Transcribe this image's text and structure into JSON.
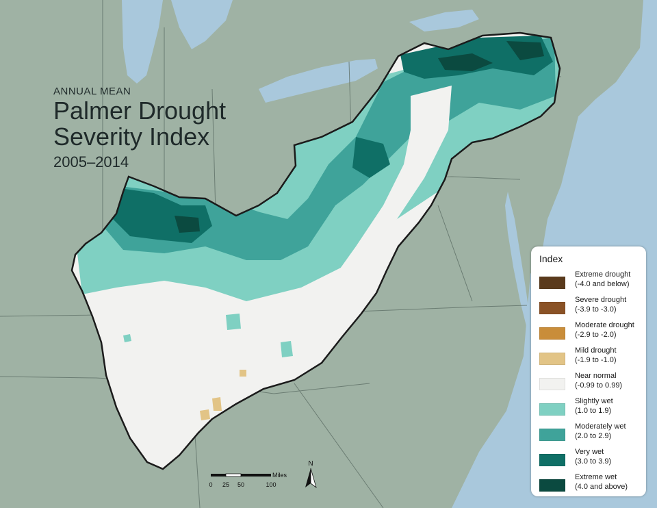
{
  "title": {
    "small": "ANNUAL MEAN",
    "line1": "Palmer Drought",
    "line2": "Severity Index",
    "years": "2005–2014"
  },
  "legend": {
    "title": "Index",
    "items": [
      {
        "label": "Extreme drought",
        "range": "(-4.0 and below)",
        "color": "#5a3a1c"
      },
      {
        "label": "Severe drought",
        "range": "(-3.9 to -3.0)",
        "color": "#8a5226"
      },
      {
        "label": "Moderate drought",
        "range": "(-2.9 to -2.0)",
        "color": "#c98d3a"
      },
      {
        "label": "Mild drought",
        "range": "(-1.9 to -1.0)",
        "color": "#e2c486"
      },
      {
        "label": "Near normal",
        "range": "(-0.99 to 0.99)",
        "color": "#f2f2f0"
      },
      {
        "label": "Slightly wet",
        "range": "(1.0 to 1.9)",
        "color": "#7fd0c2"
      },
      {
        "label": "Moderately wet",
        "range": "(2.0 to 2.9)",
        "color": "#3fa39a"
      },
      {
        "label": "Very wet",
        "range": "(3.0 to 3.9)",
        "color": "#0f6f66"
      },
      {
        "label": "Extreme wet",
        "range": "(4.0 and above)",
        "color": "#0b4a40"
      }
    ]
  },
  "scale": {
    "unit": "Miles",
    "ticks": [
      "0",
      "25",
      "50",
      "100"
    ]
  },
  "north_label": "N",
  "colors": {
    "water": "#a9c8dc",
    "land": "#9fb2a4",
    "region_border": "#1b1b1b",
    "near_normal": "#f2f2f0"
  }
}
